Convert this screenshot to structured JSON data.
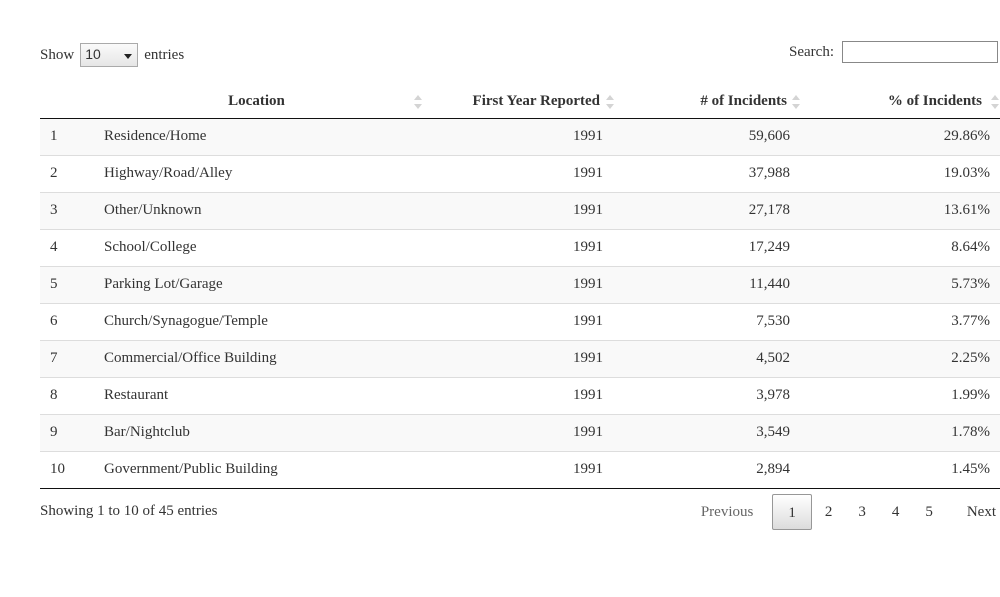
{
  "length_control": {
    "prefix": "Show",
    "selected": "10",
    "suffix": "entries"
  },
  "search": {
    "label": "Search:",
    "value": ""
  },
  "table": {
    "columns": [
      "",
      "Location",
      "First Year Reported",
      "# of Incidents",
      "% of Incidents"
    ],
    "rows": [
      [
        "1",
        "Residence/Home",
        "1991",
        "59,606",
        "29.86%"
      ],
      [
        "2",
        "Highway/Road/Alley",
        "1991",
        "37,988",
        "19.03%"
      ],
      [
        "3",
        "Other/Unknown",
        "1991",
        "27,178",
        "13.61%"
      ],
      [
        "4",
        "School/College",
        "1991",
        "17,249",
        "8.64%"
      ],
      [
        "5",
        "Parking Lot/Garage",
        "1991",
        "11,440",
        "5.73%"
      ],
      [
        "6",
        "Church/Synagogue/Temple",
        "1991",
        "7,530",
        "3.77%"
      ],
      [
        "7",
        "Commercial/Office Building",
        "1991",
        "4,502",
        "2.25%"
      ],
      [
        "8",
        "Restaurant",
        "1991",
        "3,978",
        "1.99%"
      ],
      [
        "9",
        "Bar/Nightclub",
        "1991",
        "3,549",
        "1.78%"
      ],
      [
        "10",
        "Government/Public Building",
        "1991",
        "2,894",
        "1.45%"
      ]
    ]
  },
  "footer": {
    "info": "Showing 1 to 10 of 45 entries",
    "previous": "Previous",
    "pages": [
      "1",
      "2",
      "3",
      "4",
      "5"
    ],
    "current_page": "1",
    "next": "Next"
  },
  "icons": {
    "sort": "sort-both-icon",
    "dropdown": "chevron-down-icon"
  }
}
